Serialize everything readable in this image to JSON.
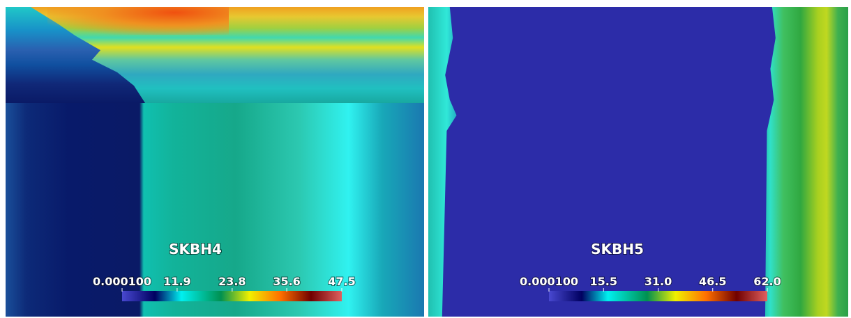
{
  "panels": [
    {
      "title": "SKBH4",
      "colorbar": {
        "range": [
          0.0001,
          47.5
        ],
        "ticks": [
          {
            "value": 0.0001,
            "label": "0.000100"
          },
          11.9,
          23.8,
          35.6,
          47.5
        ]
      }
    },
    {
      "title": "SKBH5",
      "colorbar": {
        "range": [
          0.0001,
          62
        ],
        "ticks": [
          {
            "value": 0.0001,
            "label": "0.000100"
          },
          15.5,
          {
            "value": 31,
            "label": "31.0"
          },
          46.5,
          {
            "value": 62,
            "label": "62.0"
          }
        ]
      }
    }
  ]
}
